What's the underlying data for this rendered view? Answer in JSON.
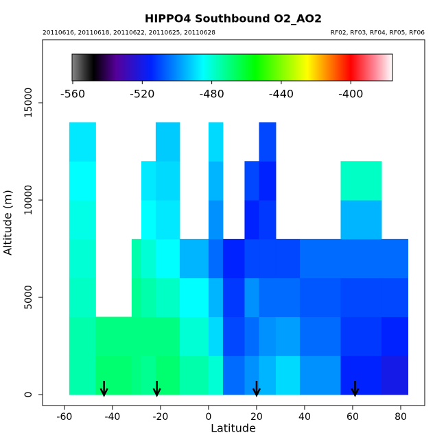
{
  "chart_data": {
    "type": "heatmap",
    "title": "HIPPO4 Southbound O2_AO2",
    "subtitle_left": "20110616, 20110618, 20110622, 20110625, 20110628",
    "subtitle_right": "RF02, RF03, RF04, RF05, RF06",
    "xlabel": "Latitude",
    "ylabel": "Altitude (m)",
    "xlim": [
      -69.1,
      90
    ],
    "ylim": [
      -560,
      18240
    ],
    "xticks": [
      -60,
      -40,
      -20,
      0,
      20,
      40,
      60,
      80
    ],
    "yticks": [
      0,
      5000,
      10000,
      15000
    ],
    "x_edges": [
      -58,
      -47,
      -32,
      -28,
      -22,
      -12,
      0,
      6,
      15,
      21,
      28,
      38,
      55,
      72,
      83
    ],
    "y_edges": [
      0,
      2000,
      4000,
      6000,
      8000,
      10000,
      12000,
      14000
    ],
    "z": [
      [
        -475,
        -475,
        -478,
        -480,
        -482,
        -485,
        -488
      ],
      [
        -468,
        -470,
        null,
        null,
        null,
        null,
        null
      ],
      [
        -470,
        -470,
        -472,
        -475,
        null,
        null,
        null
      ],
      [
        -472,
        -470,
        -475,
        -480,
        -485,
        -488,
        null
      ],
      [
        -468,
        -470,
        -478,
        -485,
        -488,
        -490,
        -492
      ],
      [
        -475,
        -480,
        -485,
        -495,
        null,
        null,
        null
      ],
      [
        -480,
        -490,
        -495,
        -505,
        -500,
        -495,
        -490
      ],
      [
        -505,
        -510,
        -512,
        -515,
        null,
        null,
        null
      ],
      [
        -500,
        -505,
        -500,
        -510,
        -515,
        -510,
        null
      ],
      [
        -495,
        -500,
        -505,
        -510,
        -512,
        -515,
        -510
      ],
      [
        -490,
        -498,
        -505,
        -510,
        null,
        null,
        null
      ],
      [
        -500,
        -505,
        -508,
        -505,
        null,
        null,
        null
      ],
      [
        -515,
        -512,
        -510,
        -505,
        -495,
        -478,
        null
      ],
      [
        -520,
        -515,
        -510,
        -505,
        null,
        null,
        null
      ]
    ],
    "zlim": [
      -560.4,
      -376
    ],
    "zticks": [
      -560,
      -520,
      -480,
      -440,
      -400
    ],
    "colormap": [
      {
        "value": -560.4,
        "color": "#888888"
      },
      {
        "value": -553,
        "color": "#333333"
      },
      {
        "value": -548,
        "color": "#000000"
      },
      {
        "value": -535,
        "color": "#550099"
      },
      {
        "value": -515,
        "color": "#0022ff"
      },
      {
        "value": -485,
        "color": "#00ffff"
      },
      {
        "value": -455,
        "color": "#00ff00"
      },
      {
        "value": -425,
        "color": "#ffff00"
      },
      {
        "value": -400,
        "color": "#ff0000"
      },
      {
        "value": -386,
        "color": "#ff8899"
      },
      {
        "value": -376,
        "color": "#ffffff"
      }
    ],
    "markers": [
      -43.5,
      -21.5,
      20,
      61
    ]
  }
}
